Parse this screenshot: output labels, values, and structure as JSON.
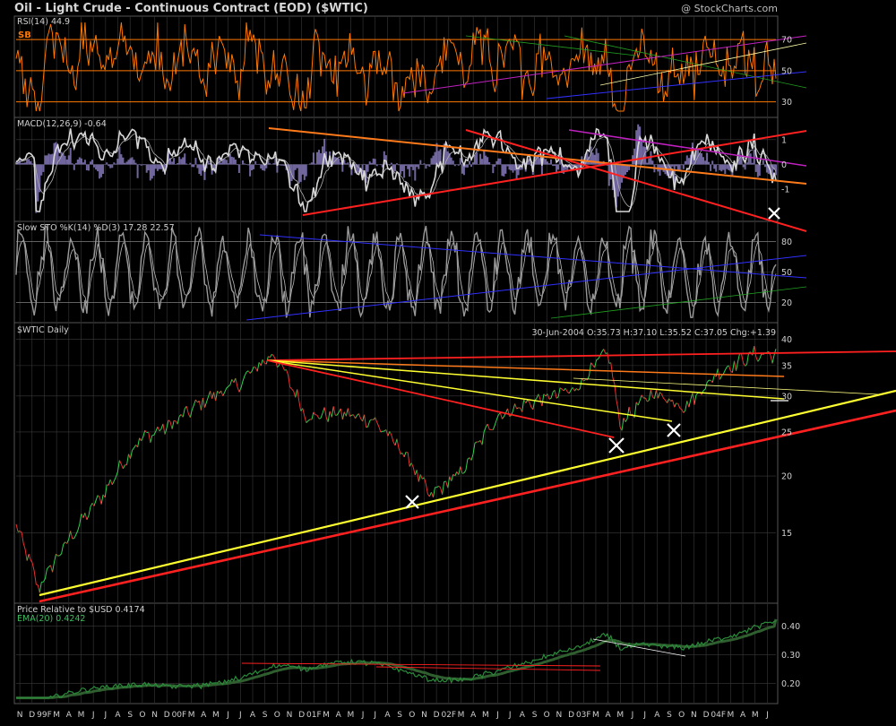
{
  "header": {
    "title": "Oil - Light Crude - Continuous Contract (EOD) ($WTIC)",
    "credit": "@ StockCharts.com"
  },
  "colors": {
    "background": "#000000",
    "grid": "#3a3a3a",
    "rsi": "#ff7700",
    "macd": "#d8d8d8",
    "macd_hist": "#8c7fc4",
    "sto": "#999999",
    "ratio": "#2a8a3a",
    "ratio_ema": "#2f5f2f",
    "red_line": "#ff2020",
    "yellow_line": "#ffff30",
    "orange_line": "#ff7a1a",
    "blue_line": "#3030ff",
    "purple_line": "#c020c0",
    "green_line": "#20a020"
  },
  "chart_data": [
    {
      "type": "line",
      "panel": "RSI",
      "title": "RSI(14) 44.9",
      "badge": "SB",
      "ylim": [
        20,
        85
      ],
      "yticks": [
        "70",
        "50",
        "30"
      ],
      "reference_lines": [
        70,
        50,
        30
      ],
      "last_value": 44.9
    },
    {
      "type": "line",
      "panel": "MACD",
      "title": "MACD(12,26,9) -0.64",
      "ylim": [
        -2.3,
        1.9
      ],
      "yticks": [
        "1",
        "0",
        "-1"
      ],
      "last_value": -0.64
    },
    {
      "type": "line",
      "panel": "Slow STO",
      "title": "Slow STO %K(14) %D(3) 17.28 22.57",
      "ylim": [
        0,
        100
      ],
      "yticks": [
        "80",
        "50",
        "20"
      ],
      "reference_lines": [
        80,
        20
      ]
    },
    {
      "type": "line",
      "panel": "Price",
      "title": "$WTIC Daily",
      "quote": "30-Jun-2004 O:35.73 H:37.10 L:35.52 C:37.05 Chg:+1.39",
      "scale": "log",
      "ylim": [
        10.5,
        43.5
      ],
      "yticks": [
        "40",
        "35",
        "30",
        "25",
        "20",
        "15"
      ],
      "ytick_values": [
        40,
        35,
        30,
        25,
        20,
        15
      ],
      "approx_closes": [
        {
          "date": "1998-10",
          "close": 15.5
        },
        {
          "date": "1998-12",
          "close": 11.3
        },
        {
          "date": "1999-03",
          "close": 14.8
        },
        {
          "date": "1999-06",
          "close": 18.5
        },
        {
          "date": "1999-09",
          "close": 24.0
        },
        {
          "date": "1999-12",
          "close": 26.0
        },
        {
          "date": "2000-03",
          "close": 29.5
        },
        {
          "date": "2000-06",
          "close": 32.0
        },
        {
          "date": "2000-09",
          "close": 37.2
        },
        {
          "date": "2000-12",
          "close": 27.0
        },
        {
          "date": "2001-03",
          "close": 27.5
        },
        {
          "date": "2001-06",
          "close": 26.5
        },
        {
          "date": "2001-09",
          "close": 22.0
        },
        {
          "date": "2001-11",
          "close": 18.0
        },
        {
          "date": "2002-02",
          "close": 20.5
        },
        {
          "date": "2002-05",
          "close": 27.0
        },
        {
          "date": "2002-08",
          "close": 29.0
        },
        {
          "date": "2002-12",
          "close": 31.0
        },
        {
          "date": "2003-03",
          "close": 37.5
        },
        {
          "date": "2003-04",
          "close": 26.0
        },
        {
          "date": "2003-07",
          "close": 30.5
        },
        {
          "date": "2003-10",
          "close": 28.5
        },
        {
          "date": "2004-01",
          "close": 34.0
        },
        {
          "date": "2004-04",
          "close": 37.0
        },
        {
          "date": "2004-06",
          "close": 37.05
        }
      ]
    },
    {
      "type": "line",
      "panel": "Ratio",
      "title": "Price Relative to $USD 0.4174",
      "subtitle": "EMA(20) 0.4242",
      "ylim": [
        0.13,
        0.48
      ],
      "yticks": [
        "0.40",
        "0.30",
        "0.20"
      ],
      "last_value": 0.4174,
      "ema_value": 0.4242
    }
  ],
  "x_axis": {
    "labels": [
      "N",
      "D",
      "99F",
      "M",
      "A",
      "M",
      "J",
      "J",
      "A",
      "S",
      "O",
      "N",
      "D",
      "00F",
      "M",
      "A",
      "M",
      "J",
      "J",
      "A",
      "S",
      "O",
      "N",
      "D",
      "01F",
      "M",
      "A",
      "M",
      "J",
      "J",
      "A",
      "S",
      "O",
      "N",
      "D",
      "02F",
      "M",
      "A",
      "M",
      "J",
      "J",
      "A",
      "S",
      "O",
      "N",
      "D",
      "03F",
      "M",
      "A",
      "M",
      "J",
      "J",
      "A",
      "S",
      "O",
      "N",
      "D",
      "04F",
      "M",
      "A",
      "M",
      "J"
    ]
  }
}
